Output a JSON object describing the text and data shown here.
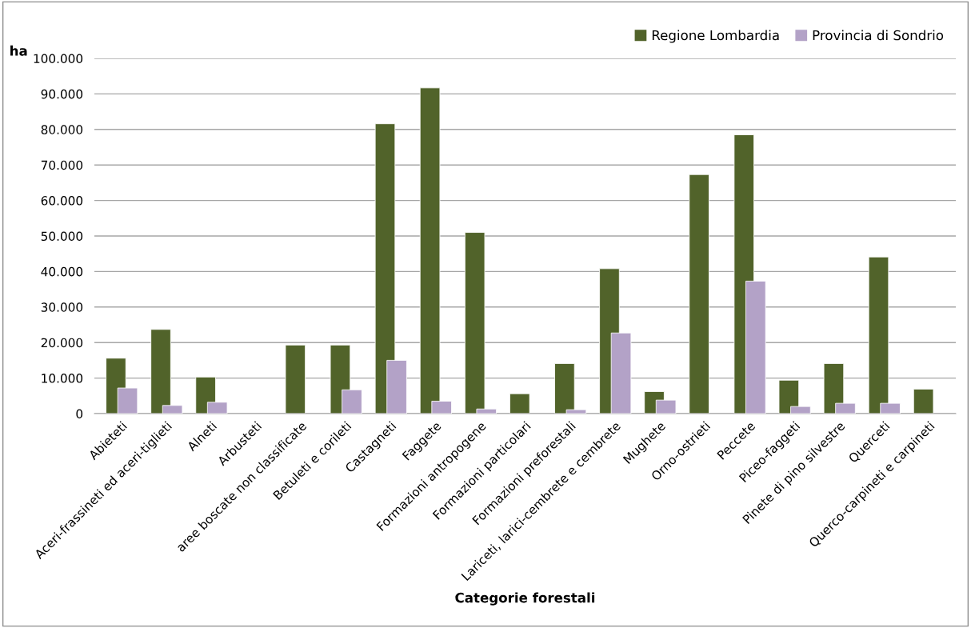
{
  "chart_data": {
    "type": "bar",
    "xlabel": "Categorie forestali",
    "ylabel": "ha",
    "categories": [
      "Abieteti",
      "Aceri-frassineti ed aceri-tiglieti",
      "Alneti",
      "Arbusteti",
      "aree boscate non classificate",
      "Betuleti e corileti",
      "Castagneti",
      "Faggete",
      "Formazioni antropogene",
      "Formazioni particolari",
      "Formazioni preforestali",
      "Lariceti, larici-cembrete e cembrete",
      "Mughete",
      "Orno-ostrieti",
      "Peccete",
      "Piceo-faggeti",
      "Pinete di pino silvestre",
      "Querceti",
      "Querco-carpineti e carpineti"
    ],
    "series": [
      {
        "name": "Regione Lombardia",
        "color": "#51632a",
        "values": [
          15600,
          23700,
          10300,
          null,
          19300,
          19300,
          81600,
          91700,
          51000,
          5600,
          14100,
          40800,
          6200,
          67300,
          78500,
          9400,
          14100,
          44100,
          6900
        ]
      },
      {
        "name": "Provincia di Sondrio",
        "color": "#b3a2c7",
        "values": [
          7200,
          2300,
          3200,
          null,
          null,
          6700,
          15000,
          3500,
          1300,
          null,
          1100,
          22700,
          3800,
          null,
          37300,
          2000,
          2900,
          2900,
          null
        ]
      }
    ],
    "ylim": [
      0,
      100000
    ],
    "yticks": [
      0,
      {
        "value": 10000,
        "label": "10.000"
      },
      {
        "value": 20000,
        "label": "20.000"
      },
      {
        "value": 30000,
        "label": "30.000"
      },
      {
        "value": 40000,
        "label": "40.000"
      },
      {
        "value": 50000,
        "label": "50.000"
      },
      {
        "value": 60000,
        "label": "60.000"
      },
      {
        "value": 70000,
        "label": "70.000"
      },
      {
        "value": 80000,
        "label": "80.000"
      },
      {
        "value": 90000,
        "label": "90.000"
      },
      {
        "value": 100000,
        "label": "100.000"
      }
    ],
    "grid": "y",
    "legend": "top right"
  }
}
